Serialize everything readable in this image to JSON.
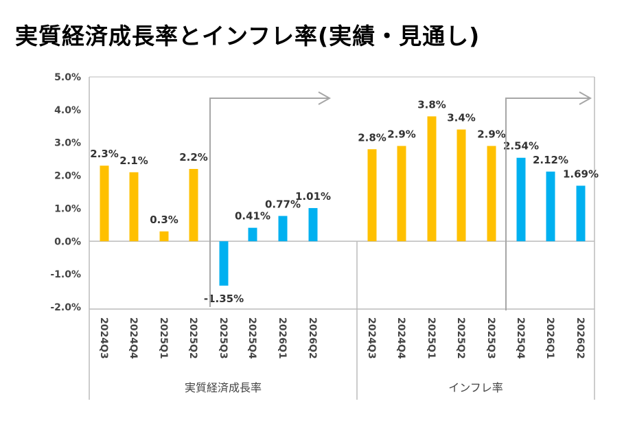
{
  "chart_data": {
    "type": "bar",
    "title": "実質経済成長率とインフレ率(実績・見通し)",
    "ylim": [
      -2.0,
      5.0
    ],
    "yticks": [
      "5.0%",
      "4.0%",
      "3.0%",
      "2.0%",
      "1.0%",
      "0.0%",
      "-1.0%",
      "-2.0%"
    ],
    "grid": false,
    "colors": {
      "actual": "#FFC000",
      "forecast": "#00B0F0"
    },
    "groups": [
      {
        "name": "実質経済成長率",
        "categories": [
          "2024Q3",
          "2024Q4",
          "2025Q1",
          "2025Q2",
          "2025Q3",
          "2025Q4",
          "2026Q1",
          "2026Q2"
        ],
        "values": [
          2.3,
          2.1,
          0.3,
          2.2,
          -1.35,
          0.41,
          0.77,
          1.01
        ],
        "labels": [
          "2.3%",
          "2.1%",
          "0.3%",
          "2.2%",
          "-1.35%",
          "0.41%",
          "0.77%",
          "1.01%"
        ],
        "kind": [
          "actual",
          "actual",
          "actual",
          "actual",
          "forecast",
          "forecast",
          "forecast",
          "forecast"
        ]
      },
      {
        "name": "インフレ率",
        "categories": [
          "2024Q3",
          "2024Q4",
          "2025Q1",
          "2025Q2",
          "2025Q3",
          "2025Q4",
          "2026Q1",
          "2026Q2"
        ],
        "values": [
          2.8,
          2.9,
          3.8,
          3.4,
          2.9,
          2.54,
          2.12,
          1.69
        ],
        "labels": [
          "2.8%",
          "2.9%",
          "3.8%",
          "3.4%",
          "2.9%",
          "2.54%",
          "2.12%",
          "1.69%"
        ],
        "kind": [
          "actual",
          "actual",
          "actual",
          "actual",
          "actual",
          "forecast",
          "forecast",
          "forecast"
        ]
      }
    ],
    "annotations": [
      "forecast-arrow-growth",
      "forecast-arrow-inflation"
    ]
  }
}
